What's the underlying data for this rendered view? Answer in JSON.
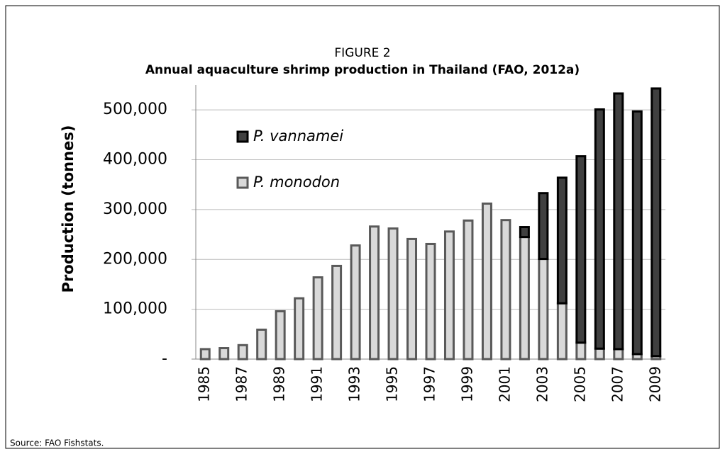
{
  "chart_data": {
    "type": "stacked_bar",
    "title": "FIGURE 2",
    "subtitle": "Annual aquaculture shrimp production in Thailand (FAO, 2012a)",
    "y_label": "Production (tonnes)",
    "source": "Source: FAO Fishstats.",
    "categories": [
      "1985",
      null,
      "1987",
      null,
      "1989",
      null,
      "1991",
      null,
      "1993",
      null,
      "1995",
      null,
      "1997",
      null,
      "1999",
      null,
      "2001",
      null,
      "2003",
      null,
      "2005",
      null,
      "2007",
      null,
      "2009"
    ],
    "series": [
      {
        "name": "P. monodon",
        "color": "#d9d9d9",
        "values": [
          20000,
          22000,
          28000,
          59000,
          96000,
          122000,
          164000,
          187000,
          228000,
          266000,
          262000,
          241000,
          231000,
          256000,
          278000,
          312000,
          279000,
          245000,
          201000,
          112000,
          33000,
          21000,
          20000,
          10000,
          6000
        ]
      },
      {
        "name": "P. vannamei",
        "color": "#404040",
        "values": [
          0,
          0,
          0,
          0,
          0,
          0,
          0,
          0,
          0,
          0,
          0,
          0,
          0,
          0,
          0,
          0,
          0,
          20000,
          132000,
          252000,
          374000,
          480000,
          513000,
          487000,
          537000
        ]
      }
    ],
    "ylim": [
      0,
      550000
    ],
    "yticks": [
      {
        "value": 0,
        "label": "-"
      },
      {
        "value": 100000,
        "label": "100,000"
      },
      {
        "value": 200000,
        "label": "200,000"
      },
      {
        "value": 300000,
        "label": "300,000"
      },
      {
        "value": 400000,
        "label": "400,000"
      },
      {
        "value": 500000,
        "label": "500,000"
      }
    ],
    "grid": true
  }
}
